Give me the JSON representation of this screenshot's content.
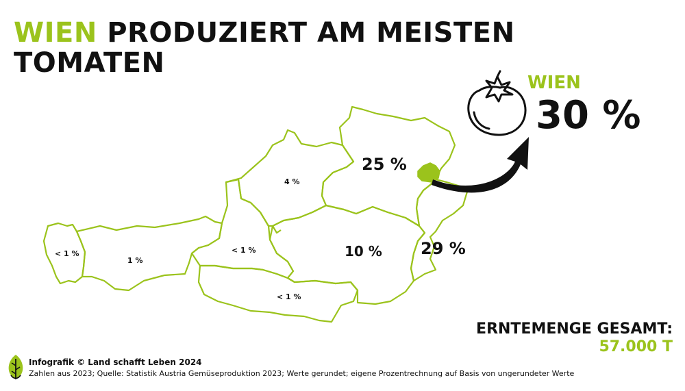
{
  "title": {
    "highlight": "WIEN",
    "rest": " PRODUZIERT AM MEISTEN TOMATEN"
  },
  "map": {
    "regions": [
      {
        "name": "Vorarlberg",
        "label": "< 1 %"
      },
      {
        "name": "Tirol",
        "label": "1 %"
      },
      {
        "name": "Salzburg",
        "label": "< 1 %"
      },
      {
        "name": "Kärnten",
        "label": "< 1 %"
      },
      {
        "name": "Oberösterreich",
        "label": "4 %"
      },
      {
        "name": "Steiermark",
        "label": "10 %"
      },
      {
        "name": "Niederösterreich",
        "label": "25 %"
      },
      {
        "name": "Burgenland",
        "label": "29 %"
      },
      {
        "name": "Wien",
        "label": "30 %"
      }
    ],
    "outline_color": "#9bc31c",
    "highlight_color": "#9bc31c"
  },
  "callout": {
    "icon": "tomato-icon",
    "name": "WIEN",
    "value": "30 %"
  },
  "total": {
    "label": "ERNTEMENGE GESAMT:",
    "value": "57.000 T"
  },
  "footer": {
    "credit": "Infografik © Land schafft Leben 2024",
    "source": "Zahlen aus 2023; Quelle: Statistik Austria Gemüseproduktion 2023; Werte gerundet; eigene Prozentrechnung auf Basis von ungerundeter Werte",
    "logo_icon": "leaf-logo-icon"
  },
  "colors": {
    "accent": "#9bc31c",
    "text": "#111111"
  }
}
